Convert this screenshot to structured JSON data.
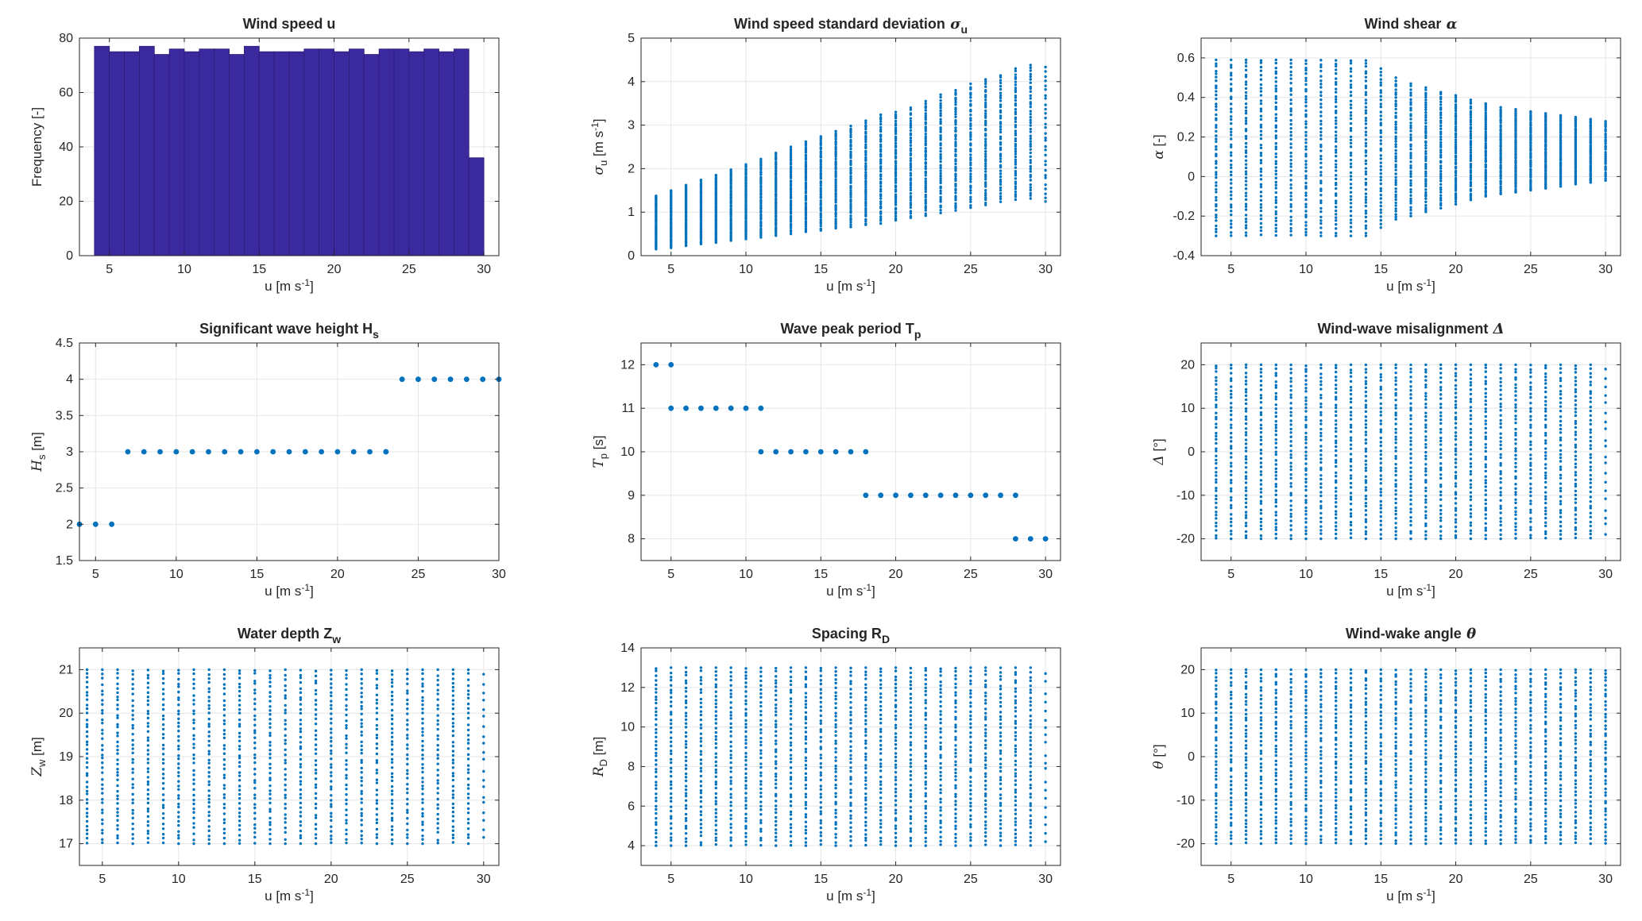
{
  "colors": {
    "bar": "#3b2a9e",
    "bar_edge": "#2a1c74",
    "points": "#0072bd",
    "grid": "#e6e6e6",
    "axis": "#262626"
  },
  "chart_data": [
    {
      "type": "bar",
      "title": "Wind speed u",
      "xlabel_main": "u [m s",
      "xlabel_sup": "-1",
      "xlabel_end": "]",
      "ylabel": "Frequency [-]",
      "xlim": [
        3,
        31
      ],
      "ylim": [
        0,
        80
      ],
      "xticks": [
        5,
        10,
        15,
        20,
        25,
        30
      ],
      "yticks": [
        0,
        20,
        40,
        60,
        80
      ],
      "bin_edges": [
        4,
        5,
        6,
        7,
        8,
        9,
        10,
        11,
        12,
        13,
        14,
        15,
        16,
        17,
        18,
        19,
        20,
        21,
        22,
        23,
        24,
        25,
        26,
        27,
        28,
        29,
        30
      ],
      "values": [
        77,
        75,
        75,
        77,
        74,
        76,
        75,
        76,
        76,
        74,
        77,
        75,
        75,
        75,
        76,
        76,
        75,
        76,
        74,
        76,
        76,
        75,
        76,
        75,
        76,
        36
      ]
    },
    {
      "type": "scatter",
      "title_main": "Wind speed standard deviation",
      "title_sym": "σ",
      "title_sub": "u",
      "xlabel_main": "u [m s",
      "xlabel_sup": "-1",
      "xlabel_end": "]",
      "ylabel_sym": "σ",
      "ylabel_sub": "u",
      "ylabel_tail": " [m s",
      "ylabel_sup": "-1",
      "ylabel_end": "]",
      "xlim": [
        3,
        31
      ],
      "ylim": [
        0,
        5
      ],
      "xticks": [
        5,
        10,
        15,
        20,
        25,
        30
      ],
      "yticks": [
        0,
        1,
        2,
        3,
        4,
        5
      ],
      "x": [
        4,
        5,
        6,
        7,
        8,
        9,
        10,
        11,
        12,
        13,
        14,
        15,
        16,
        17,
        18,
        19,
        20,
        21,
        22,
        23,
        24,
        25,
        26,
        27,
        28,
        29,
        30
      ],
      "ymin": [
        0.15,
        0.18,
        0.22,
        0.26,
        0.3,
        0.34,
        0.38,
        0.42,
        0.46,
        0.5,
        0.54,
        0.58,
        0.62,
        0.66,
        0.7,
        0.74,
        0.8,
        0.86,
        0.92,
        0.98,
        1.04,
        1.1,
        1.16,
        1.22,
        1.28,
        1.3,
        1.22
      ],
      "ymax": [
        1.38,
        1.5,
        1.62,
        1.74,
        1.86,
        1.98,
        2.1,
        2.22,
        2.36,
        2.5,
        2.62,
        2.74,
        2.86,
        2.98,
        3.1,
        3.24,
        3.3,
        3.4,
        3.55,
        3.7,
        3.8,
        3.95,
        4.05,
        4.15,
        4.3,
        4.38,
        4.35
      ],
      "n": [
        50,
        45,
        50,
        45,
        50,
        45,
        50,
        45,
        50,
        45,
        50,
        45,
        50,
        45,
        50,
        45,
        50,
        45,
        50,
        45,
        50,
        45,
        50,
        45,
        50,
        45,
        30
      ]
    },
    {
      "type": "scatter",
      "title_main": "Wind shear",
      "title_sym": "α",
      "title_sub": "",
      "xlabel_main": "u [m s",
      "xlabel_sup": "-1",
      "xlabel_end": "]",
      "ylabel_sym": "α",
      "ylabel_sub": "",
      "ylabel_tail": " [-]",
      "ylabel_sup": "",
      "ylabel_end": "",
      "xlim": [
        3,
        31
      ],
      "ylim": [
        -0.4,
        0.7
      ],
      "xticks": [
        5,
        10,
        15,
        20,
        25,
        30
      ],
      "yticks": [
        -0.4,
        -0.2,
        0,
        0.2,
        0.4,
        0.6
      ],
      "x": [
        4,
        5,
        6,
        7,
        8,
        9,
        10,
        11,
        12,
        13,
        14,
        15,
        16,
        17,
        18,
        19,
        20,
        21,
        22,
        23,
        24,
        25,
        26,
        27,
        28,
        29,
        30
      ],
      "ymin": [
        -0.3,
        -0.3,
        -0.3,
        -0.3,
        -0.3,
        -0.3,
        -0.3,
        -0.3,
        -0.3,
        -0.3,
        -0.3,
        -0.26,
        -0.22,
        -0.2,
        -0.18,
        -0.16,
        -0.14,
        -0.12,
        -0.1,
        -0.09,
        -0.08,
        -0.07,
        -0.06,
        -0.05,
        -0.04,
        -0.03,
        -0.02
      ],
      "ymax": [
        0.59,
        0.59,
        0.59,
        0.59,
        0.59,
        0.59,
        0.59,
        0.59,
        0.59,
        0.59,
        0.59,
        0.55,
        0.5,
        0.47,
        0.45,
        0.43,
        0.41,
        0.39,
        0.37,
        0.35,
        0.34,
        0.33,
        0.32,
        0.31,
        0.3,
        0.29,
        0.28
      ],
      "n": [
        50,
        45,
        50,
        45,
        50,
        45,
        50,
        45,
        50,
        45,
        50,
        45,
        50,
        45,
        50,
        45,
        50,
        45,
        50,
        45,
        50,
        45,
        50,
        45,
        50,
        45,
        30
      ]
    },
    {
      "type": "scatter",
      "title_main": "Significant wave height H",
      "title_sym": "",
      "title_sub": "s",
      "xlabel_main": "u [m s",
      "xlabel_sup": "-1",
      "xlabel_end": "]",
      "ylabel_sym": "H",
      "ylabel_sub": "s",
      "ylabel_tail": " [m]",
      "ylabel_sup": "",
      "ylabel_end": "",
      "xlim": [
        4,
        30
      ],
      "ylim": [
        1.5,
        4.5
      ],
      "xticks": [
        5,
        10,
        15,
        20,
        25,
        30
      ],
      "yticks": [
        1.5,
        2,
        2.5,
        3,
        3.5,
        4,
        4.5
      ],
      "x": [
        4,
        5,
        6,
        7,
        8,
        9,
        10,
        11,
        12,
        13,
        14,
        15,
        16,
        17,
        18,
        19,
        20,
        21,
        22,
        23,
        24,
        25,
        26,
        27,
        28,
        29,
        30
      ],
      "ymin": [
        2,
        2,
        2,
        3,
        3,
        3,
        3,
        3,
        3,
        3,
        3,
        3,
        3,
        3,
        3,
        3,
        3,
        3,
        3,
        3,
        4,
        4,
        4,
        4,
        4,
        4,
        4
      ],
      "ymax": [
        2,
        2,
        2,
        3,
        3,
        3,
        3,
        3,
        3,
        3,
        3,
        3,
        3,
        3,
        3,
        3,
        3,
        3,
        3,
        3,
        4,
        4,
        4,
        4,
        4,
        4,
        4
      ],
      "n": [
        1,
        1,
        1,
        1,
        1,
        1,
        1,
        1,
        1,
        1,
        1,
        1,
        1,
        1,
        1,
        1,
        1,
        1,
        1,
        1,
        1,
        1,
        1,
        1,
        1,
        1,
        1
      ],
      "extra": {
        "x": 23,
        "y": 3
      }
    },
    {
      "type": "scatter",
      "title_main": "Wave peak period T",
      "title_sym": "",
      "title_sub": "p",
      "xlabel_main": "u [m s",
      "xlabel_sup": "-1",
      "xlabel_end": "]",
      "ylabel_sym": "T",
      "ylabel_sub": "p",
      "ylabel_tail": " [s]",
      "ylabel_sup": "",
      "ylabel_end": "",
      "xlim": [
        3,
        31
      ],
      "ylim": [
        7.5,
        12.5
      ],
      "xticks": [
        5,
        10,
        15,
        20,
        25,
        30
      ],
      "yticks": [
        8,
        9,
        10,
        11,
        12
      ],
      "x": [
        4,
        5,
        6,
        7,
        8,
        9,
        10,
        11,
        12,
        13,
        14,
        15,
        16,
        17,
        18,
        19,
        20,
        21,
        22,
        23,
        24,
        25,
        26,
        27,
        28,
        29,
        30
      ],
      "ymin": [
        12,
        12,
        11,
        11,
        11,
        11,
        11,
        11,
        10,
        10,
        10,
        10,
        10,
        10,
        10,
        9,
        9,
        9,
        9,
        9,
        9,
        9,
        9,
        9,
        8,
        8,
        8
      ],
      "ymax": [
        12,
        12,
        11,
        11,
        11,
        11,
        11,
        11,
        10,
        10,
        10,
        10,
        10,
        10,
        10,
        9,
        9,
        9,
        9,
        9,
        9,
        9,
        9,
        9,
        8,
        8,
        8
      ],
      "n": [
        1,
        1,
        1,
        1,
        1,
        1,
        1,
        1,
        1,
        1,
        1,
        1,
        1,
        1,
        1,
        1,
        1,
        1,
        1,
        1,
        1,
        1,
        1,
        1,
        1,
        1,
        1
      ],
      "extra_pts": [
        [
          5,
          11
        ],
        [
          11,
          10
        ],
        [
          18,
          9
        ],
        [
          28,
          9
        ]
      ]
    },
    {
      "type": "scatter",
      "title_main": "Wind-wave misalignment",
      "title_sym": "Δ",
      "title_sub": "",
      "xlabel_main": "u [m s",
      "xlabel_sup": "-1",
      "xlabel_end": "]",
      "ylabel_sym": "Δ",
      "ylabel_sub": "",
      "ylabel_tail": " [°]",
      "ylabel_sup": "",
      "ylabel_end": "",
      "xlim": [
        3,
        31
      ],
      "ylim": [
        -25,
        25
      ],
      "xticks": [
        5,
        10,
        15,
        20,
        25,
        30
      ],
      "yticks": [
        -20,
        -10,
        0,
        10,
        20
      ],
      "x": [
        4,
        5,
        6,
        7,
        8,
        9,
        10,
        11,
        12,
        13,
        14,
        15,
        16,
        17,
        18,
        19,
        20,
        21,
        22,
        23,
        24,
        25,
        26,
        27,
        28,
        29,
        30
      ],
      "ymin": [
        -20,
        -20,
        -20,
        -20,
        -20,
        -20,
        -20,
        -20,
        -20,
        -20,
        -20,
        -20,
        -20,
        -20,
        -20,
        -20,
        -20,
        -20,
        -20,
        -20,
        -20,
        -20,
        -20,
        -20,
        -20,
        -20,
        -19
      ],
      "ymax": [
        20,
        20,
        20,
        20,
        20,
        20,
        20,
        20,
        20,
        20,
        20,
        20,
        20,
        20,
        20,
        20,
        20,
        20,
        20,
        20,
        20,
        20,
        20,
        20,
        20,
        20,
        19
      ],
      "n": [
        45,
        42,
        45,
        42,
        45,
        42,
        45,
        42,
        45,
        42,
        45,
        42,
        45,
        42,
        45,
        42,
        45,
        42,
        45,
        42,
        45,
        42,
        45,
        42,
        45,
        42,
        20
      ]
    },
    {
      "type": "scatter",
      "title_main": "Water depth Z",
      "title_sym": "",
      "title_sub": "w",
      "xlabel_main": "u [m s",
      "xlabel_sup": "-1",
      "xlabel_end": "]",
      "ylabel_sym": "Z",
      "ylabel_sub": "w",
      "ylabel_tail": " [m]",
      "ylabel_sup": "",
      "ylabel_end": "",
      "xlim": [
        3.5,
        31
      ],
      "ylim": [
        16.5,
        21.5
      ],
      "xticks": [
        5,
        10,
        15,
        20,
        25,
        30
      ],
      "yticks": [
        17,
        18,
        19,
        20,
        21
      ],
      "x": [
        4,
        5,
        6,
        7,
        8,
        9,
        10,
        11,
        12,
        13,
        14,
        15,
        16,
        17,
        18,
        19,
        20,
        21,
        22,
        23,
        24,
        25,
        26,
        27,
        28,
        29,
        30
      ],
      "ymin": [
        17,
        17,
        17,
        17,
        17,
        17,
        17,
        17,
        17,
        17,
        17,
        17,
        17,
        17,
        17,
        17,
        17,
        17,
        17,
        17,
        17,
        17,
        17,
        17,
        17,
        17,
        17.1
      ],
      "ymax": [
        21,
        21,
        21,
        21,
        21,
        21,
        21,
        21,
        21,
        21,
        21,
        21,
        21,
        21,
        21,
        21,
        21,
        21,
        21,
        21,
        21,
        21,
        21,
        21,
        21,
        21,
        20.9
      ],
      "n": [
        40,
        36,
        40,
        36,
        40,
        36,
        40,
        36,
        40,
        36,
        40,
        36,
        40,
        36,
        40,
        36,
        40,
        36,
        40,
        36,
        40,
        36,
        40,
        36,
        40,
        36,
        20
      ]
    },
    {
      "type": "scatter",
      "title_main": "Spacing R",
      "title_sym": "",
      "title_sub": "D",
      "xlabel_main": "u [m s",
      "xlabel_sup": "-1",
      "xlabel_end": "]",
      "ylabel_sym": "R",
      "ylabel_sub": "D",
      "ylabel_tail": " [m]",
      "ylabel_sup": "",
      "ylabel_end": "",
      "xlim": [
        3,
        31
      ],
      "ylim": [
        3,
        14
      ],
      "xticks": [
        5,
        10,
        15,
        20,
        25,
        30
      ],
      "yticks": [
        4,
        6,
        8,
        10,
        12,
        14
      ],
      "x": [
        4,
        5,
        6,
        7,
        8,
        9,
        10,
        11,
        12,
        13,
        14,
        15,
        16,
        17,
        18,
        19,
        20,
        21,
        22,
        23,
        24,
        25,
        26,
        27,
        28,
        29,
        30
      ],
      "ymin": [
        4,
        4,
        4,
        4,
        4,
        4,
        4,
        4,
        4,
        4,
        4,
        4,
        4,
        4,
        4,
        4,
        4,
        4,
        4,
        4,
        4,
        4,
        4,
        4,
        4,
        4,
        4.2
      ],
      "ymax": [
        13,
        13,
        13,
        13,
        13,
        13,
        13,
        13,
        13,
        13,
        13,
        13,
        13,
        13,
        13,
        13,
        13,
        13,
        13,
        13,
        13,
        13,
        13,
        13,
        13,
        13,
        12.7
      ],
      "n": [
        45,
        42,
        45,
        42,
        45,
        42,
        45,
        42,
        45,
        42,
        45,
        42,
        45,
        42,
        45,
        42,
        45,
        42,
        45,
        42,
        45,
        42,
        45,
        42,
        45,
        42,
        20
      ]
    },
    {
      "type": "scatter",
      "title_main": "Wind-wake angle",
      "title_sym": "θ",
      "title_sub": "",
      "xlabel_main": "u [m s",
      "xlabel_sup": "-1",
      "xlabel_end": "]",
      "ylabel_sym": "θ",
      "ylabel_sub": "",
      "ylabel_tail": " [°]",
      "ylabel_sup": "",
      "ylabel_end": "",
      "xlim": [
        3,
        31
      ],
      "ylim": [
        -25,
        25
      ],
      "xticks": [
        5,
        10,
        15,
        20,
        25,
        30
      ],
      "yticks": [
        -20,
        -10,
        0,
        10,
        20
      ],
      "x": [
        4,
        5,
        6,
        7,
        8,
        9,
        10,
        11,
        12,
        13,
        14,
        15,
        16,
        17,
        18,
        19,
        20,
        21,
        22,
        23,
        24,
        25,
        26,
        27,
        28,
        29,
        30
      ],
      "ymin": [
        -20,
        -20,
        -20,
        -20,
        -20,
        -20,
        -20,
        -20,
        -20,
        -20,
        -20,
        -20,
        -20,
        -20,
        -20,
        -20,
        -20,
        -20,
        -20,
        -20,
        -20,
        -20,
        -20,
        -20,
        -20,
        -20,
        -20
      ],
      "ymax": [
        20,
        20,
        20,
        20,
        20,
        20,
        20,
        20,
        20,
        20,
        20,
        20,
        20,
        20,
        20,
        20,
        20,
        20,
        20,
        20,
        20,
        20,
        20,
        20,
        20,
        20,
        20
      ],
      "n": [
        45,
        42,
        45,
        42,
        45,
        42,
        45,
        42,
        45,
        42,
        45,
        42,
        45,
        42,
        45,
        42,
        45,
        42,
        45,
        42,
        45,
        42,
        45,
        42,
        45,
        42,
        45
      ]
    }
  ]
}
